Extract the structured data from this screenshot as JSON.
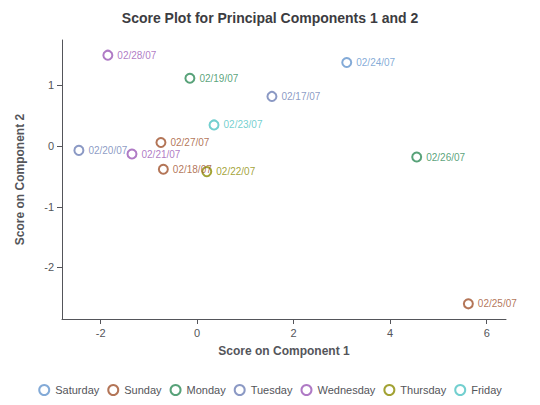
{
  "chart_data": {
    "type": "scatter",
    "title": "Score Plot for Principal Components 1 and 2",
    "xlabel": "Score on Component 1",
    "ylabel": "Score on Component 2",
    "xlim": [
      -2.8,
      6.4
    ],
    "ylim": [
      -2.85,
      1.75
    ],
    "xticks": [
      -2,
      0,
      2,
      4,
      6
    ],
    "yticks": [
      -2,
      -1,
      0,
      1
    ],
    "grid": false,
    "legend": "bottom",
    "marker": "circle",
    "series": [
      {
        "name": "Saturday",
        "color": "#6495CD",
        "x": [
          3.1
        ],
        "values": [
          1.38
        ],
        "labels": [
          "02/24/07"
        ]
      },
      {
        "name": "Sunday",
        "color": "#A0522D",
        "x": [
          -0.7,
          5.62,
          -0.75
        ],
        "values": [
          -0.38,
          -2.6,
          0.06
        ],
        "labels": [
          "02/18/07",
          "02/25/07",
          "02/27/07"
        ]
      },
      {
        "name": "Monday",
        "color": "#2E8B57",
        "x": [
          -0.15,
          4.55
        ],
        "values": [
          1.12,
          -0.18
        ],
        "labels": [
          "02/19/07",
          "02/26/07"
        ]
      },
      {
        "name": "Tuesday",
        "color": "#6E7FB5",
        "x": [
          1.55,
          -2.45
        ],
        "values": [
          0.82,
          -0.07
        ],
        "labels": [
          "02/17/07",
          "02/20/07"
        ]
      },
      {
        "name": "Wednesday",
        "color": "#9B59B6",
        "x": [
          -1.35,
          -1.85
        ],
        "values": [
          -0.13,
          1.5
        ],
        "labels": [
          "02/21/07",
          "02/28/07"
        ]
      },
      {
        "name": "Thursday",
        "color": "#8B8B00",
        "x": [
          0.2
        ],
        "values": [
          -0.42
        ],
        "labels": [
          "02/22/07"
        ]
      },
      {
        "name": "Friday",
        "color": "#4FC3C3",
        "x": [
          0.35
        ],
        "values": [
          0.35
        ],
        "labels": [
          "02/23/07"
        ]
      }
    ]
  }
}
